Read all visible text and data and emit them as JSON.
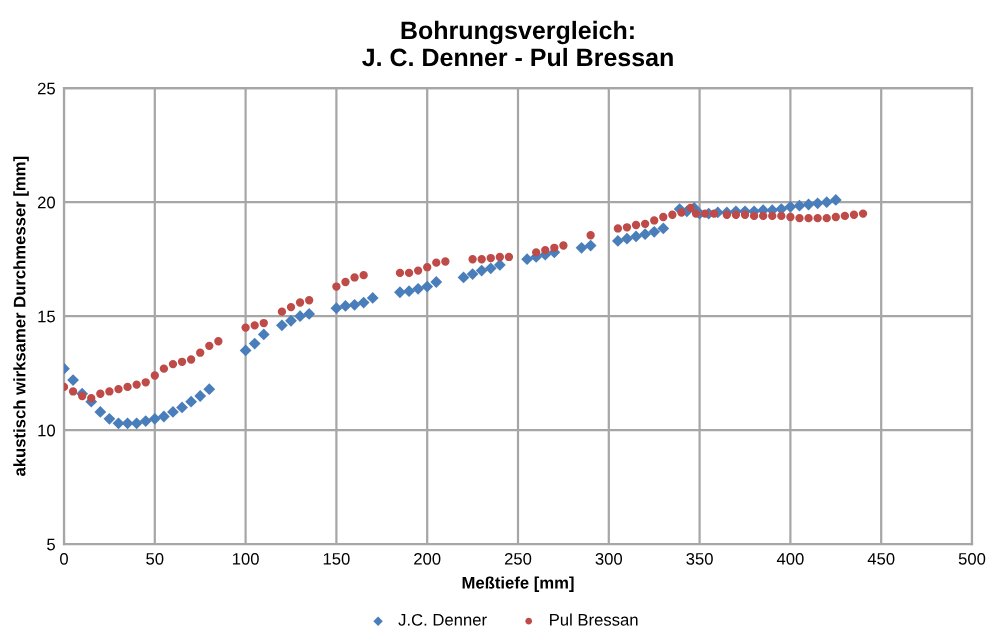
{
  "chart_data": {
    "type": "scatter",
    "title": "Bohrungsvergleich:\nJ. C. Denner - Pul Bressan",
    "xlabel": "Meßtiefe [mm]",
    "ylabel": "akustisch wirksamer Durchmesser [mm]",
    "xlim": [
      0,
      500
    ],
    "ylim": [
      5,
      25
    ],
    "xticks": [
      0,
      50,
      100,
      150,
      200,
      250,
      300,
      350,
      400,
      450,
      500
    ],
    "yticks": [
      5,
      10,
      15,
      20,
      25
    ],
    "grid": true,
    "legend": "bottom",
    "series": [
      {
        "name": "J.C. Denner",
        "color": "#4a7ebb",
        "marker": "diamond",
        "x": [
          0,
          5,
          10,
          15,
          20,
          25,
          30,
          35,
          40,
          45,
          50,
          55,
          60,
          65,
          70,
          75,
          80,
          100,
          105,
          110,
          120,
          125,
          130,
          135,
          150,
          155,
          160,
          165,
          170,
          185,
          190,
          195,
          200,
          205,
          220,
          225,
          230,
          235,
          240,
          255,
          260,
          265,
          270,
          285,
          290,
          305,
          310,
          315,
          320,
          325,
          330,
          339,
          343,
          347,
          350,
          355,
          360,
          365,
          370,
          375,
          380,
          385,
          390,
          395,
          400,
          405,
          410,
          415,
          420,
          425
        ],
        "values": [
          12.7,
          12.2,
          11.6,
          11.25,
          10.8,
          10.5,
          10.3,
          10.3,
          10.3,
          10.4,
          10.5,
          10.6,
          10.8,
          11.0,
          11.25,
          11.5,
          11.8,
          13.5,
          13.8,
          14.2,
          14.6,
          14.8,
          15.0,
          15.1,
          15.35,
          15.45,
          15.5,
          15.6,
          15.8,
          16.05,
          16.1,
          16.2,
          16.3,
          16.5,
          16.7,
          16.85,
          17.0,
          17.1,
          17.25,
          17.5,
          17.6,
          17.7,
          17.8,
          18.0,
          18.1,
          18.3,
          18.4,
          18.5,
          18.6,
          18.7,
          18.85,
          19.7,
          19.6,
          19.75,
          19.5,
          19.5,
          19.55,
          19.55,
          19.6,
          19.6,
          19.6,
          19.65,
          19.65,
          19.7,
          19.8,
          19.85,
          19.9,
          19.95,
          20.0,
          20.1
        ]
      },
      {
        "name": "Pul Bressan",
        "color": "#be4b48",
        "marker": "circle",
        "x": [
          0,
          5,
          10,
          15,
          20,
          25,
          30,
          35,
          40,
          45,
          50,
          55,
          60,
          65,
          70,
          75,
          80,
          85,
          100,
          105,
          110,
          120,
          125,
          130,
          135,
          150,
          155,
          160,
          165,
          185,
          190,
          195,
          200,
          205,
          210,
          225,
          230,
          235,
          240,
          245,
          260,
          265,
          270,
          275,
          290,
          305,
          310,
          315,
          320,
          325,
          330,
          335,
          340,
          345,
          348,
          353,
          358,
          365,
          370,
          375,
          380,
          385,
          390,
          395,
          400,
          405,
          410,
          415,
          420,
          425,
          430,
          435,
          440
        ],
        "values": [
          11.9,
          11.7,
          11.5,
          11.4,
          11.6,
          11.7,
          11.8,
          11.9,
          12.0,
          12.1,
          12.4,
          12.7,
          12.9,
          13.0,
          13.1,
          13.4,
          13.7,
          13.9,
          14.5,
          14.6,
          14.7,
          15.2,
          15.4,
          15.6,
          15.7,
          16.3,
          16.5,
          16.7,
          16.8,
          16.9,
          16.9,
          17.0,
          17.15,
          17.35,
          17.4,
          17.5,
          17.5,
          17.55,
          17.6,
          17.6,
          17.8,
          17.9,
          18.0,
          18.1,
          18.55,
          18.85,
          18.9,
          19.0,
          19.05,
          19.2,
          19.35,
          19.45,
          19.55,
          19.75,
          19.5,
          19.5,
          19.5,
          19.45,
          19.45,
          19.45,
          19.4,
          19.4,
          19.4,
          19.4,
          19.35,
          19.3,
          19.3,
          19.3,
          19.3,
          19.35,
          19.4,
          19.45,
          19.5
        ]
      }
    ]
  }
}
